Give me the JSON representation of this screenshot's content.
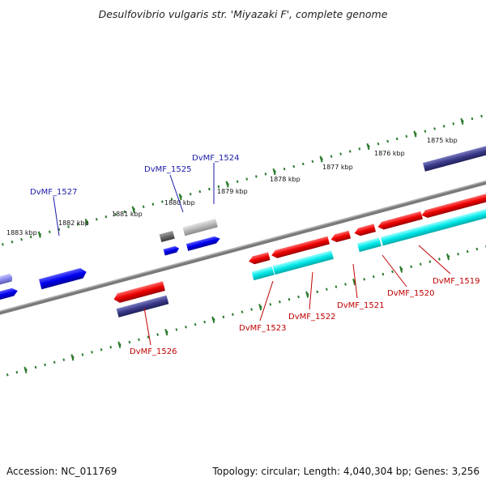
{
  "title": "Desulfovibrio vulgaris str. 'Miyazaki F', complete genome",
  "footer": {
    "accession": "Accession: NC_011769",
    "summary": "Topology: circular; Length: 4,040,304 bp; Genes: 3,256"
  },
  "colors": {
    "forward_cds": "#0000ee",
    "reverse_cds": "#ee0000",
    "forward_cog": "#8a8aee",
    "reverse_cog_cyan": "#00e0e0",
    "reverse_cog_navy": "#3a3a8a",
    "backbone": "#7a7a7a",
    "tick_green": "#2a7a2a",
    "label_blue": "#1a1aa8",
    "label_red": "#c00000"
  },
  "ruler": {
    "ticks": [
      "1883 kbp",
      "1882 kbp",
      "1881 kbp",
      "1880 kbp",
      "1879 kbp",
      "1878 kbp",
      "1877 kbp",
      "1876 kbp",
      "1875 kbp"
    ]
  },
  "genes": {
    "forward": [
      "DvMF_1527",
      "DvMF_1525",
      "DvMF_1524"
    ],
    "reverse": [
      "DvMF_1526",
      "DvMF_1523",
      "DvMF_1522",
      "DvMF_1521",
      "DvMF_1520",
      "DvMF_1519"
    ]
  }
}
